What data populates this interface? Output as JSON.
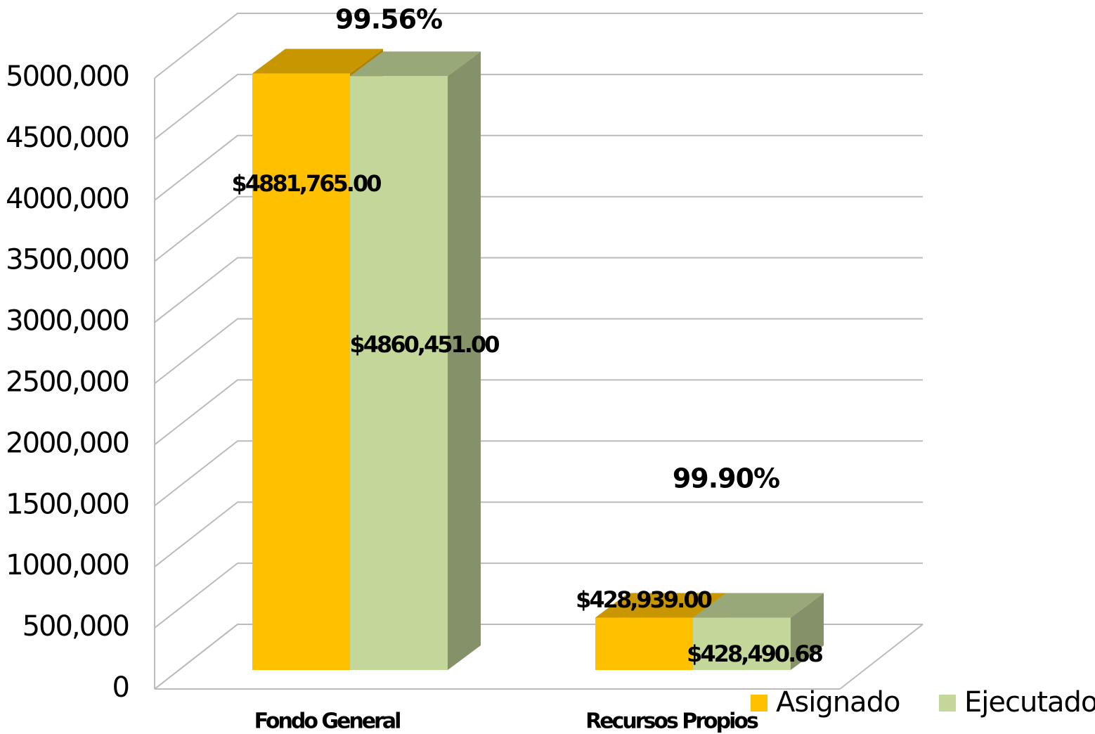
{
  "chart_data": {
    "type": "bar3d",
    "categories": [
      "Fondo General",
      "Recursos Propios"
    ],
    "series": [
      {
        "name": "Asignado",
        "color": "#FFC000",
        "values": [
          4881765,
          428939
        ],
        "value_labels": [
          "$4881,765.00",
          "$428,939.00"
        ]
      },
      {
        "name": "Ejecutado",
        "color": "#C4D79B",
        "values": [
          4860451,
          428490.68
        ],
        "value_labels": [
          "$4860,451.00",
          "$428,490.68"
        ]
      }
    ],
    "annotations": [
      "99.56%",
      "99.90%"
    ],
    "ylim": [
      0,
      5000000
    ],
    "yticks": [
      0,
      {
        "value": 500000,
        "label": "500,000"
      },
      {
        "value": 1000000,
        "label": "1000,000"
      },
      {
        "value": 1500000,
        "label": "1500,000"
      },
      {
        "value": 2000000,
        "label": "2000,000"
      },
      {
        "value": 2500000,
        "label": "2500,000"
      },
      {
        "value": 3000000,
        "label": "3000,000"
      },
      {
        "value": 3500000,
        "label": "3500,000"
      },
      {
        "value": 4000000,
        "label": "4000,000"
      },
      {
        "value": 4500000,
        "label": "4500,000"
      },
      {
        "value": 5000000,
        "label": "5000,000"
      }
    ],
    "grid": true,
    "legend": "bottom-right"
  }
}
